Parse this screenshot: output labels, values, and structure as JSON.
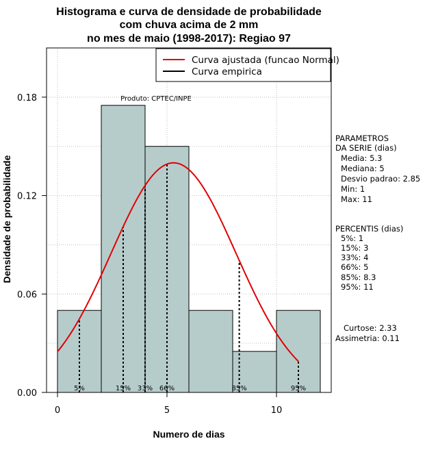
{
  "chart_data": {
    "type": "bar",
    "title_lines": [
      "Histograma e curva de densidade de probabilidade",
      "com chuva acima de 2 mm",
      "no mes de maio (1998-2017): Regiao 97"
    ],
    "xlabel": "Numero de dias",
    "ylabel": "Densidade de probabilidade",
    "xlim": [
      -0.5,
      12.5
    ],
    "ylim": [
      0,
      0.21
    ],
    "x_ticks": [
      0,
      5,
      10
    ],
    "y_ticks": [
      0.0,
      0.06,
      0.12,
      0.18
    ],
    "y_tick_labels": [
      "0.00",
      "0.06",
      "0.12",
      "0.18"
    ],
    "grid": true,
    "bins": [
      {
        "from": 0,
        "to": 2,
        "density": 0.05
      },
      {
        "from": 2,
        "to": 4,
        "density": 0.175
      },
      {
        "from": 4,
        "to": 6,
        "density": 0.15
      },
      {
        "from": 6,
        "to": 8,
        "density": 0.05
      },
      {
        "from": 8,
        "to": 10,
        "density": 0.025
      },
      {
        "from": 10,
        "to": 12,
        "density": 0.05
      }
    ],
    "normal_fit": {
      "mean": 5.3,
      "sd": 2.85,
      "x_from": 0,
      "x_to": 11
    },
    "percentile_markers": [
      {
        "label": "5%",
        "x": 1
      },
      {
        "label": "15%",
        "x": 3
      },
      {
        "label": "33%",
        "x": 4
      },
      {
        "label": "66%",
        "x": 5
      },
      {
        "label": "85%",
        "x": 8.3
      },
      {
        "label": "95%",
        "x": 11
      }
    ],
    "legend": {
      "position": "top-right",
      "entries": [
        {
          "label": "Curva ajustada (funcao Normal)",
          "color": "#e00000"
        },
        {
          "label": "Curva empirica",
          "color": "#000000"
        }
      ]
    },
    "annotation": "Produto: CPTEC/INPE",
    "colors": {
      "bar_fill": "#b6cccb",
      "grid": "#bdbdbd",
      "curve": "#e00000"
    }
  },
  "side_panel": {
    "params_title": [
      "PARAMETROS",
      "DA SERIE (dias)"
    ],
    "params": [
      "Media: 5.3",
      "Mediana: 5",
      "Desvio padrao: 2.85",
      "Min: 1",
      "Max: 11"
    ],
    "percentis_title": "PERCENTIS (dias)",
    "percentis": [
      "5%: 1",
      "15%: 3",
      "33%: 4",
      "66%: 5",
      "85%: 8.3",
      "95%: 11"
    ],
    "curtose": "Curtose: 2.33",
    "assimetria": "Assimetria: 0.11"
  }
}
